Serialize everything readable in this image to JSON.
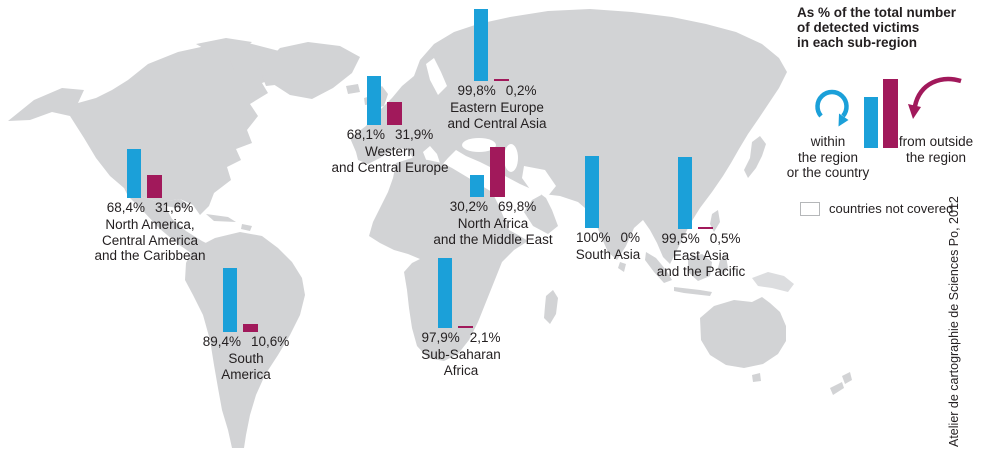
{
  "legend": {
    "title_lines": [
      "As % of the total number",
      "of detected victims",
      "in each sub-region"
    ],
    "within_label_lines": [
      "within",
      "the region",
      "or the country"
    ],
    "outside_label_lines": [
      "from outside",
      "the region"
    ],
    "not_covered_label": "countries not covered",
    "colors": {
      "within": "#1ba0d9",
      "outside": "#a1195b",
      "map": "#d2d3d5",
      "map_light": "#dcdddf",
      "text": "#231f20",
      "swatch_border": "#b5b7b9"
    }
  },
  "credit": "Atelier de cartographie de Sciences Po, 2012",
  "chart_data": {
    "type": "bar",
    "title": "As % of the total number of detected victims in each sub-region",
    "unit": "%",
    "series_names": [
      "within the region or the country",
      "from outside the region"
    ],
    "ylim": [
      0,
      100
    ],
    "regions": [
      {
        "id": "north-america-central-america-caribbean",
        "label_lines": [
          "North America,",
          "Central America",
          "and the Caribbean"
        ],
        "within_value": 68.4,
        "outside_value": 31.6,
        "within_label": "68,4%",
        "outside_label": "31,6%"
      },
      {
        "id": "south-america",
        "label_lines": [
          "South",
          "America"
        ],
        "within_value": 89.4,
        "outside_value": 10.6,
        "within_label": "89,4%",
        "outside_label": "10,6%"
      },
      {
        "id": "western-central-europe",
        "label_lines": [
          "Western",
          "and Central Europe"
        ],
        "within_value": 68.1,
        "outside_value": 31.9,
        "within_label": "68,1%",
        "outside_label": "31,9%"
      },
      {
        "id": "eastern-europe-central-asia",
        "label_lines": [
          "Eastern Europe",
          "and Central Asia"
        ],
        "within_value": 99.8,
        "outside_value": 0.2,
        "within_label": "99,8%",
        "outside_label": "0,2%"
      },
      {
        "id": "north-africa-middle-east",
        "label_lines": [
          "North Africa",
          "and the Middle East"
        ],
        "within_value": 30.2,
        "outside_value": 69.8,
        "within_label": "30,2%",
        "outside_label": "69,8%"
      },
      {
        "id": "sub-saharan-africa",
        "label_lines": [
          "Sub-Saharan",
          "Africa"
        ],
        "within_value": 97.9,
        "outside_value": 2.1,
        "within_label": "97,9%",
        "outside_label": "2,1%"
      },
      {
        "id": "south-asia",
        "label_lines": [
          "South Asia"
        ],
        "within_value": 100,
        "outside_value": 0,
        "within_label": "100%",
        "outside_label": "0%"
      },
      {
        "id": "east-asia-pacific",
        "label_lines": [
          "East Asia",
          "and the Pacific"
        ],
        "within_value": 99.5,
        "outside_value": 0.5,
        "within_label": "99,5%",
        "outside_label": "0,5%"
      }
    ]
  }
}
